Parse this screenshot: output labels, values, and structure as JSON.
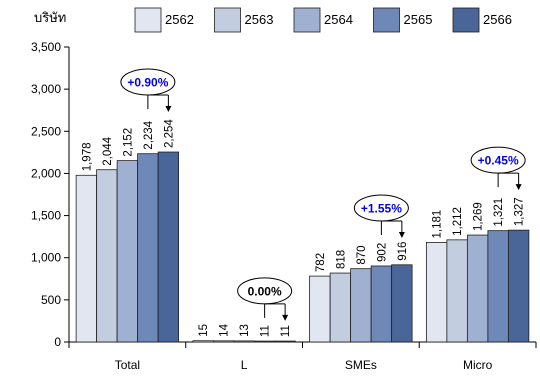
{
  "chart_data": {
    "type": "bar",
    "ylabel": "บริษัท",
    "categories": [
      "Total",
      "L",
      "SMEs",
      "Micro"
    ],
    "series": [
      {
        "name": "2562",
        "values": [
          1978,
          15,
          782,
          1181
        ],
        "color": "#e1e6f0"
      },
      {
        "name": "2563",
        "values": [
          2044,
          14,
          818,
          1212
        ],
        "color": "#c2cde0"
      },
      {
        "name": "2564",
        "values": [
          2152,
          13,
          870,
          1269
        ],
        "color": "#9fb0d0"
      },
      {
        "name": "2565",
        "values": [
          2234,
          11,
          902,
          1321
        ],
        "color": "#6e88b8"
      },
      {
        "name": "2566",
        "values": [
          2254,
          11,
          916,
          1327
        ],
        "color": "#4a6699"
      }
    ],
    "data_labels": [
      [
        "1,978",
        "2,044",
        "2,152",
        "2,234",
        "2,254"
      ],
      [
        "15",
        "14",
        "13",
        "11",
        "11"
      ],
      [
        "782",
        "818",
        "870",
        "902",
        "916"
      ],
      [
        "1,181",
        "1,212",
        "1,269",
        "1,321",
        "1,327"
      ]
    ],
    "yticks": [
      "0",
      "500",
      "1,000",
      "1,500",
      "2,000",
      "2,500",
      "3,000",
      "3,500"
    ],
    "ylim": [
      0,
      3500
    ],
    "grid": false,
    "legend_position": "top",
    "annotations": [
      {
        "category": "Total",
        "text": "+0.90%"
      },
      {
        "category": "L",
        "text": "0.00%"
      },
      {
        "category": "SMEs",
        "text": "+1.55%"
      },
      {
        "category": "Micro",
        "text": "+0.45%"
      }
    ],
    "annotation_colors": {
      "positive": "#0000ee",
      "neutral": "#000000"
    }
  }
}
